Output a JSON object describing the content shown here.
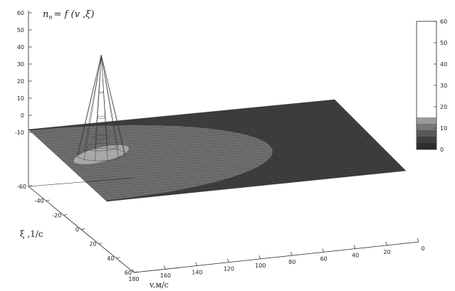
{
  "chart_data": {
    "type": "surface3d",
    "title": "n_n = f (v ,ξ)",
    "title_parts": {
      "lhs": "n",
      "lhs_sub": "n",
      "rhs": "= f (v ,ξ)"
    },
    "xlabel": "v,м/с",
    "ylabel": "ξ ,1/с",
    "x_ticks": [
      "180",
      "160",
      "140",
      "120",
      "100",
      "80",
      "60",
      "40",
      "20",
      "0"
    ],
    "y_ticks": [
      "-60",
      "-40",
      "-20",
      "0",
      "20",
      "40",
      "60"
    ],
    "z_ticks": [
      "60",
      "50",
      "40",
      "30",
      "20",
      "10",
      "0",
      "-10"
    ],
    "xlim": [
      0,
      180
    ],
    "ylim": [
      -60,
      60
    ],
    "zlim": [
      -10,
      60
    ],
    "surface": {
      "base_level": 0,
      "inner_region_level": 2,
      "peak": {
        "v": 160,
        "xi": 0,
        "n": 43
      }
    },
    "colorbox": {
      "ticks": [
        "60",
        "50",
        "40",
        "30",
        "20",
        "10",
        "0"
      ],
      "range": [
        0,
        60
      ]
    },
    "grid": false,
    "legend": "colorbox-right"
  }
}
